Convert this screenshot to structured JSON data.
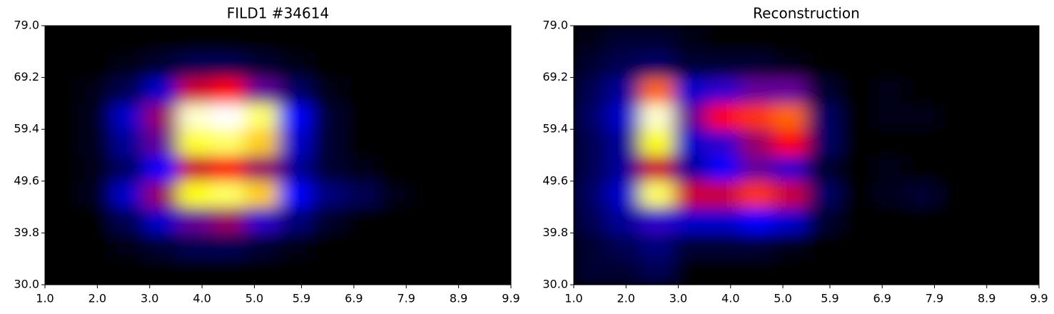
{
  "chart_data": [
    {
      "type": "heatmap",
      "title": "FILD1 #34614",
      "x": [
        1.32,
        1.95,
        2.59,
        3.23,
        3.86,
        4.5,
        5.13,
        5.77,
        6.4,
        7.04,
        7.68,
        8.31,
        8.95,
        9.58
      ],
      "y": [
        32.5,
        37.4,
        42.3,
        47.2,
        52.1,
        57.0,
        61.9,
        66.8,
        71.7,
        76.6
      ],
      "z": [
        [
          0,
          0,
          0,
          0,
          0,
          0,
          0,
          0,
          0,
          0,
          0,
          0,
          0,
          0
        ],
        [
          0,
          0,
          0.02,
          0.05,
          0.08,
          0.08,
          0.05,
          0.02,
          0,
          0,
          0,
          0,
          0,
          0
        ],
        [
          0,
          0,
          0.08,
          0.2,
          0.35,
          0.4,
          0.3,
          0.12,
          0.04,
          0,
          0,
          0,
          0,
          0
        ],
        [
          0,
          0.03,
          0.2,
          0.4,
          0.75,
          0.85,
          0.7,
          0.25,
          0.12,
          0.08,
          0.02,
          0,
          0,
          0
        ],
        [
          0,
          0.02,
          0.1,
          0.25,
          0.45,
          0.5,
          0.4,
          0.15,
          0.05,
          0.02,
          0,
          0,
          0,
          0
        ],
        [
          0,
          0.03,
          0.15,
          0.35,
          0.8,
          0.85,
          0.7,
          0.2,
          0.05,
          0,
          0,
          0,
          0,
          0
        ],
        [
          0,
          0.03,
          0.2,
          0.4,
          0.95,
          1.0,
          0.85,
          0.25,
          0.05,
          0,
          0,
          0,
          0,
          0
        ],
        [
          0,
          0.02,
          0.08,
          0.2,
          0.45,
          0.5,
          0.35,
          0.1,
          0.02,
          0,
          0,
          0,
          0,
          0
        ],
        [
          0,
          0,
          0.02,
          0.05,
          0.08,
          0.08,
          0.05,
          0.02,
          0,
          0,
          0,
          0,
          0,
          0
        ],
        [
          0,
          0,
          0,
          0,
          0,
          0,
          0,
          0,
          0,
          0,
          0,
          0,
          0,
          0
        ]
      ],
      "zlim": [
        0,
        1
      ],
      "colormap": [
        "#000000",
        "#0000ff",
        "#ff0000",
        "#ffff00",
        "#ffffff"
      ],
      "xlim": [
        1,
        9.9
      ],
      "ylim": [
        30,
        79
      ],
      "xticks": [
        {
          "value": 1,
          "label": "1.0"
        },
        {
          "value": 2,
          "label": "2.0"
        },
        {
          "value": 3,
          "label": "3.0"
        },
        {
          "value": 4,
          "label": "4.0"
        },
        {
          "value": 5,
          "label": "5.0"
        },
        5.9,
        6.9,
        7.9,
        8.9,
        9.9
      ],
      "yticks": [
        {
          "value": 30,
          "label": "30.0"
        },
        39.8,
        49.6,
        59.4,
        69.2,
        {
          "value": 79,
          "label": "79.0"
        }
      ]
    },
    {
      "type": "heatmap",
      "title": "Reconstruction",
      "x": [
        1.32,
        1.95,
        2.59,
        3.23,
        3.86,
        4.5,
        5.13,
        5.77,
        6.4,
        7.04,
        7.68,
        8.31,
        8.95,
        9.58
      ],
      "y": [
        32.5,
        37.4,
        42.3,
        47.2,
        52.1,
        57.0,
        61.9,
        66.8,
        71.7,
        76.6
      ],
      "z": [
        [
          0.05,
          0.05,
          0.08,
          0,
          0,
          0,
          0,
          0,
          0,
          0,
          0,
          0,
          0,
          0
        ],
        [
          0.05,
          0.08,
          0.12,
          0.05,
          0.05,
          0.05,
          0.02,
          0,
          0,
          0,
          0,
          0,
          0,
          0
        ],
        [
          0.08,
          0.15,
          0.3,
          0.2,
          0.2,
          0.25,
          0.2,
          0.05,
          0,
          0,
          0,
          0,
          0,
          0
        ],
        [
          0.1,
          0.2,
          0.85,
          0.45,
          0.45,
          0.55,
          0.45,
          0.1,
          0,
          0.03,
          0.05,
          0,
          0,
          0
        ],
        [
          0.08,
          0.15,
          0.45,
          0.15,
          0.25,
          0.35,
          0.3,
          0.05,
          0,
          0.02,
          0,
          0,
          0,
          0
        ],
        [
          0.08,
          0.15,
          0.75,
          0.2,
          0.3,
          0.4,
          0.5,
          0.1,
          0,
          0,
          0,
          0,
          0,
          0
        ],
        [
          0.1,
          0.2,
          0.95,
          0.35,
          0.5,
          0.55,
          0.6,
          0.1,
          0,
          0.02,
          0.02,
          0,
          0,
          0
        ],
        [
          0.08,
          0.15,
          0.6,
          0.2,
          0.3,
          0.35,
          0.35,
          0.05,
          0,
          0.02,
          0,
          0,
          0,
          0
        ],
        [
          0.05,
          0.08,
          0.1,
          0.05,
          0.05,
          0.05,
          0.02,
          0,
          0,
          0,
          0,
          0,
          0,
          0
        ],
        [
          0.02,
          0.05,
          0.05,
          0.02,
          0,
          0,
          0,
          0,
          0,
          0,
          0,
          0,
          0,
          0
        ]
      ],
      "zlim": [
        0,
        1
      ],
      "colormap": [
        "#000000",
        "#0000ff",
        "#ff0000",
        "#ffff00",
        "#ffffff"
      ],
      "xlim": [
        1,
        9.9
      ],
      "ylim": [
        30,
        79
      ],
      "xticks": [
        {
          "value": 1,
          "label": "1.0"
        },
        {
          "value": 2,
          "label": "2.0"
        },
        {
          "value": 3,
          "label": "3.0"
        },
        {
          "value": 4,
          "label": "4.0"
        },
        {
          "value": 5,
          "label": "5.0"
        },
        5.9,
        6.9,
        7.9,
        8.9,
        9.9
      ],
      "yticks": [
        {
          "value": 30,
          "label": "30.0"
        },
        39.8,
        49.6,
        59.4,
        69.2,
        {
          "value": 79,
          "label": "79.0"
        }
      ]
    }
  ]
}
